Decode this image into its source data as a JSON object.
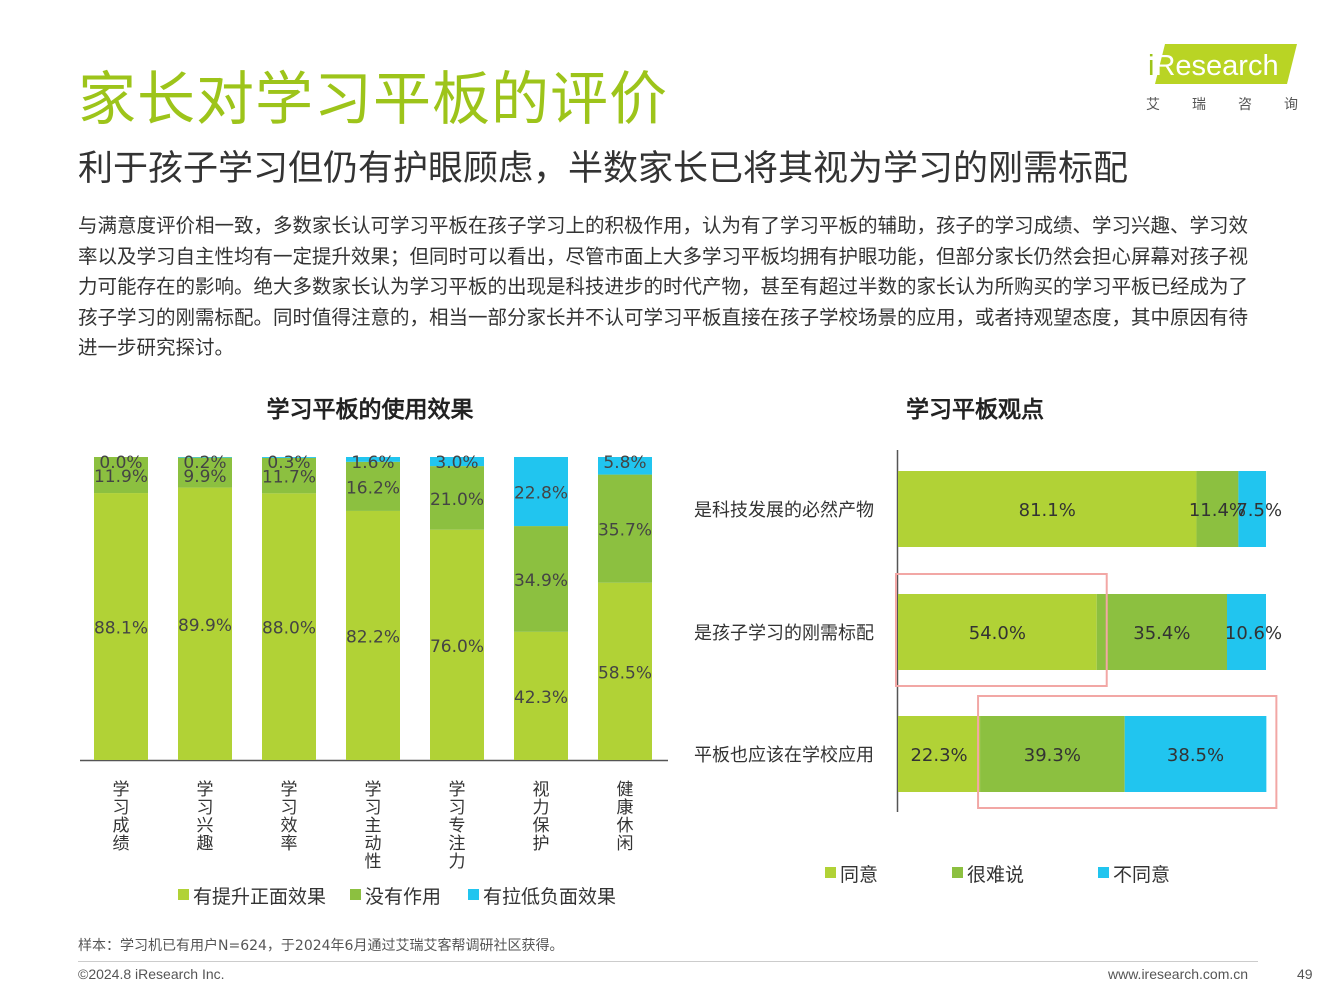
{
  "page": {
    "title": "家长对学习平板的评价",
    "subtitle": "利于孩子学习但仍有护眼顾虑，半数家长已将其视为学习的刚需标配",
    "body": "与满意度评价相一致，多数家长认可学习平板在孩子学习上的积极作用，认为有了学习平板的辅助，孩子的学习成绩、学习兴趣、学习效率以及学习自主性均有一定提升效果；但同时可以看出，尽管市面上大多学习平板均拥有护眼功能，但部分家长仍然会担心屏幕对孩子视力可能存在的影响。绝大多数家长认为学习平板的出现是科技进步的时代产物，甚至有超过半数的家长认为所购买的学习平板已经成为了孩子学习的刚需标配。同时值得注意的，相当一部分家长并不认可学习平板直接在孩子学校场景的应用，或者持观望态度，其中原因有待进一步研究探讨。",
    "footnote": "样本：学习机已有用户N=624，于2024年6月通过艾瑞艾客帮调研社区获得。",
    "copyright": "©2024.8 iResearch Inc.",
    "website": "www.iresearch.com.cn",
    "page_number": "49"
  },
  "logo": {
    "prefix": "i",
    "brand": "Research",
    "cn_chars": [
      "艾",
      "瑞",
      "咨",
      "询"
    ]
  },
  "colors": {
    "title_green": "#9dc41a",
    "positive": "#b1d236",
    "neutral": "#8cc040",
    "negative": "#21c5ef",
    "highlight_box": "#f2a7a5"
  },
  "chart_data": [
    {
      "type": "bar",
      "stacked": true,
      "orientation": "vertical",
      "title": "学习平板的使用效果",
      "categories": [
        "学习成绩",
        "学习兴趣",
        "学习效率",
        "学习主动性",
        "学习专注力",
        "视力保护",
        "健康休闲"
      ],
      "series": [
        {
          "name": "有提升正面效果",
          "values": [
            88.1,
            89.9,
            88.0,
            82.2,
            76.0,
            42.3,
            58.5
          ]
        },
        {
          "name": "没有作用",
          "values": [
            11.9,
            9.9,
            11.7,
            16.2,
            21.0,
            34.9,
            35.7
          ]
        },
        {
          "name": "有拉低负面效果",
          "values": [
            0.0,
            0.2,
            0.3,
            1.6,
            3.0,
            22.8,
            5.8
          ]
        }
      ],
      "legend": [
        "有提升正面效果",
        "没有作用",
        "有拉低负面效果"
      ],
      "ylim": [
        0,
        100
      ],
      "unit": "%"
    },
    {
      "type": "bar",
      "stacked": true,
      "orientation": "horizontal",
      "title": "学习平板观点",
      "categories": [
        "是科技发展的必然产物",
        "是孩子学习的刚需标配",
        "平板也应该在学校应用"
      ],
      "series": [
        {
          "name": "同意",
          "values": [
            81.1,
            54.0,
            22.3
          ]
        },
        {
          "name": "很难说",
          "values": [
            11.4,
            35.4,
            39.3
          ]
        },
        {
          "name": "不同意",
          "values": [
            7.5,
            10.6,
            38.5
          ]
        }
      ],
      "legend": [
        "同意",
        "很难说",
        "不同意"
      ],
      "xlim": [
        0,
        100
      ],
      "unit": "%",
      "highlights": [
        {
          "category": "是孩子学习的刚需标配",
          "series": [
            "同意"
          ]
        },
        {
          "category": "平板也应该在学校应用",
          "series": [
            "很难说",
            "不同意"
          ]
        }
      ]
    }
  ]
}
